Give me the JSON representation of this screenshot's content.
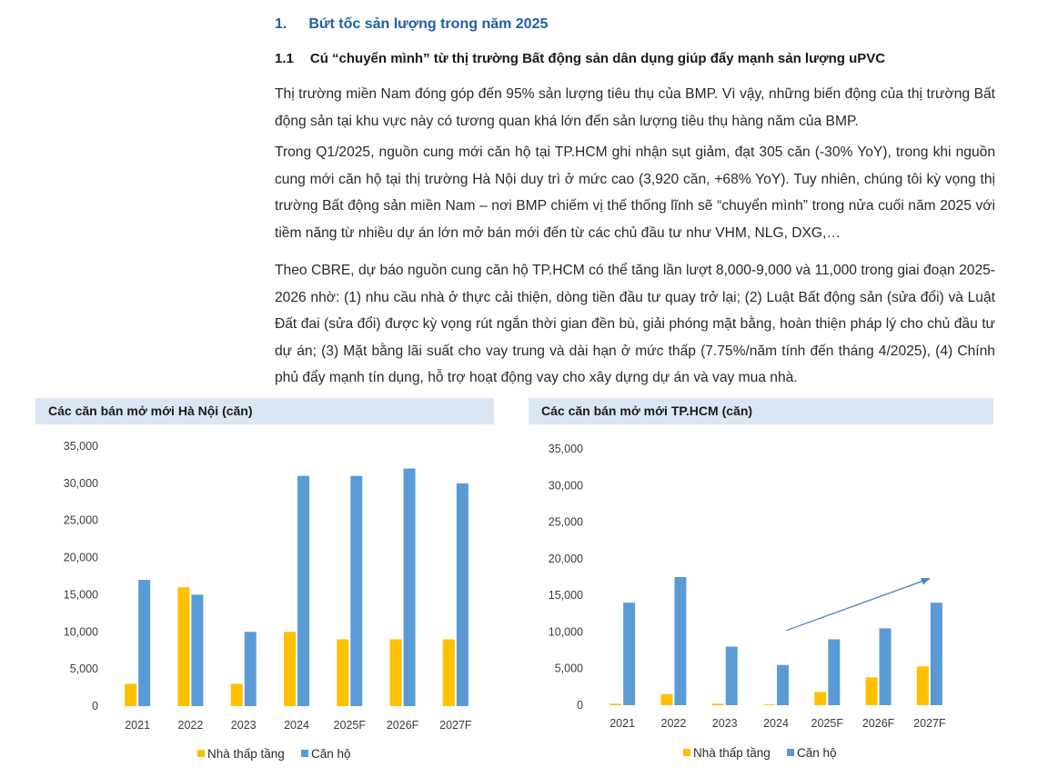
{
  "heading": {
    "number": "1.",
    "text": "Bứt tốc sản lượng trong năm 2025"
  },
  "subheading": {
    "number": "1.1",
    "text": "Cú “chuyển mình” từ thị trường Bất động sản dân dụng giúp đẩy mạnh sản lượng uPVC"
  },
  "paragraphs": [
    "Thị trường miền Nam đóng góp đến 95% sản lượng tiêu thụ của BMP. Vì vậy, những biến động của thị trường Bất động sản tại khu vực này có tương quan khá lớn đến sản lượng tiêu thụ hàng năm của BMP.",
    "Trong Q1/2025, nguồn cung mới căn hộ tại TP.HCM ghi nhận sụt giảm, đạt 305 căn (-30% YoY), trong khi nguồn cung mới căn hộ tại thị trường Hà Nội duy trì ở mức cao (3,920 căn, +68% YoY). Tuy nhiên, chúng tôi kỳ vọng thị trường Bất động sản miền Nam – nơi BMP chiếm vị thế thống lĩnh sẽ “chuyển mình” trong nửa cuối năm 2025 với tiềm năng từ nhiều dự án lớn mở bán mới đến từ các chủ đầu tư như VHM, NLG, DXG,…",
    "Theo CBRE, dự báo nguồn cung căn hộ TP.HCM có thể tăng lần lượt 8,000-9,000 và 11,000 trong giai đoạn 2025-2026 nhờ: (1) nhu cầu nhà ở thực cải thiện, dòng tiền đầu tư quay trở lại; (2) Luật Bất động sản (sửa đổi) và Luật Đất đai (sửa đổi) được kỳ vọng rút ngắn thời gian đền bù, giải phóng mặt bằng, hoàn thiện pháp lý cho chủ đầu tư dự án; (3) Mặt bằng lãi suất cho vay trung và dài hạn ở mức thấp (7.75%/năm tính đến tháng 4/2025), (4) Chính phủ đẩy mạnh tín dụng, hỗ trợ hoạt động vay cho xây dựng dự án và vay mua nhà."
  ],
  "chart_data": [
    {
      "type": "bar",
      "title": "Các căn bán mở mới Hà Nội (căn)",
      "categories": [
        "2021",
        "2022",
        "2023",
        "2024",
        "2025F",
        "2026F",
        "2027F"
      ],
      "series": [
        {
          "name": "Nhà thấp tầng",
          "color": "#ffc000",
          "values": [
            3000,
            16000,
            3000,
            10000,
            9000,
            9000,
            9000
          ]
        },
        {
          "name": "Căn hộ",
          "color": "#5b9bd5",
          "values": [
            17000,
            15000,
            10000,
            31000,
            31000,
            32000,
            30000
          ]
        }
      ],
      "ylim": [
        0,
        35000
      ],
      "yticks": [
        "0",
        "5,000",
        "10,000",
        "15,000",
        "20,000",
        "25,000",
        "30,000",
        "35,000"
      ],
      "grid": false,
      "legend": "bottom"
    },
    {
      "type": "bar",
      "title": "Các căn bán mở mới TP.HCM (căn)",
      "categories": [
        "2021",
        "2022",
        "2023",
        "2024",
        "2025F",
        "2026F",
        "2027F"
      ],
      "series": [
        {
          "name": "Nhà thấp tầng",
          "color": "#ffc000",
          "values": [
            200,
            1500,
            200,
            100,
            1800,
            3800,
            5300
          ]
        },
        {
          "name": "Căn hộ",
          "color": "#5b9bd5",
          "values": [
            14000,
            17500,
            8000,
            5500,
            9000,
            10500,
            14000
          ]
        }
      ],
      "ylim": [
        0,
        35000
      ],
      "yticks": [
        "0",
        "5,000",
        "10,000",
        "15,000",
        "20,000",
        "25,000",
        "30,000",
        "35,000"
      ],
      "grid": false,
      "legend": "bottom",
      "trend_arrow": true
    }
  ]
}
